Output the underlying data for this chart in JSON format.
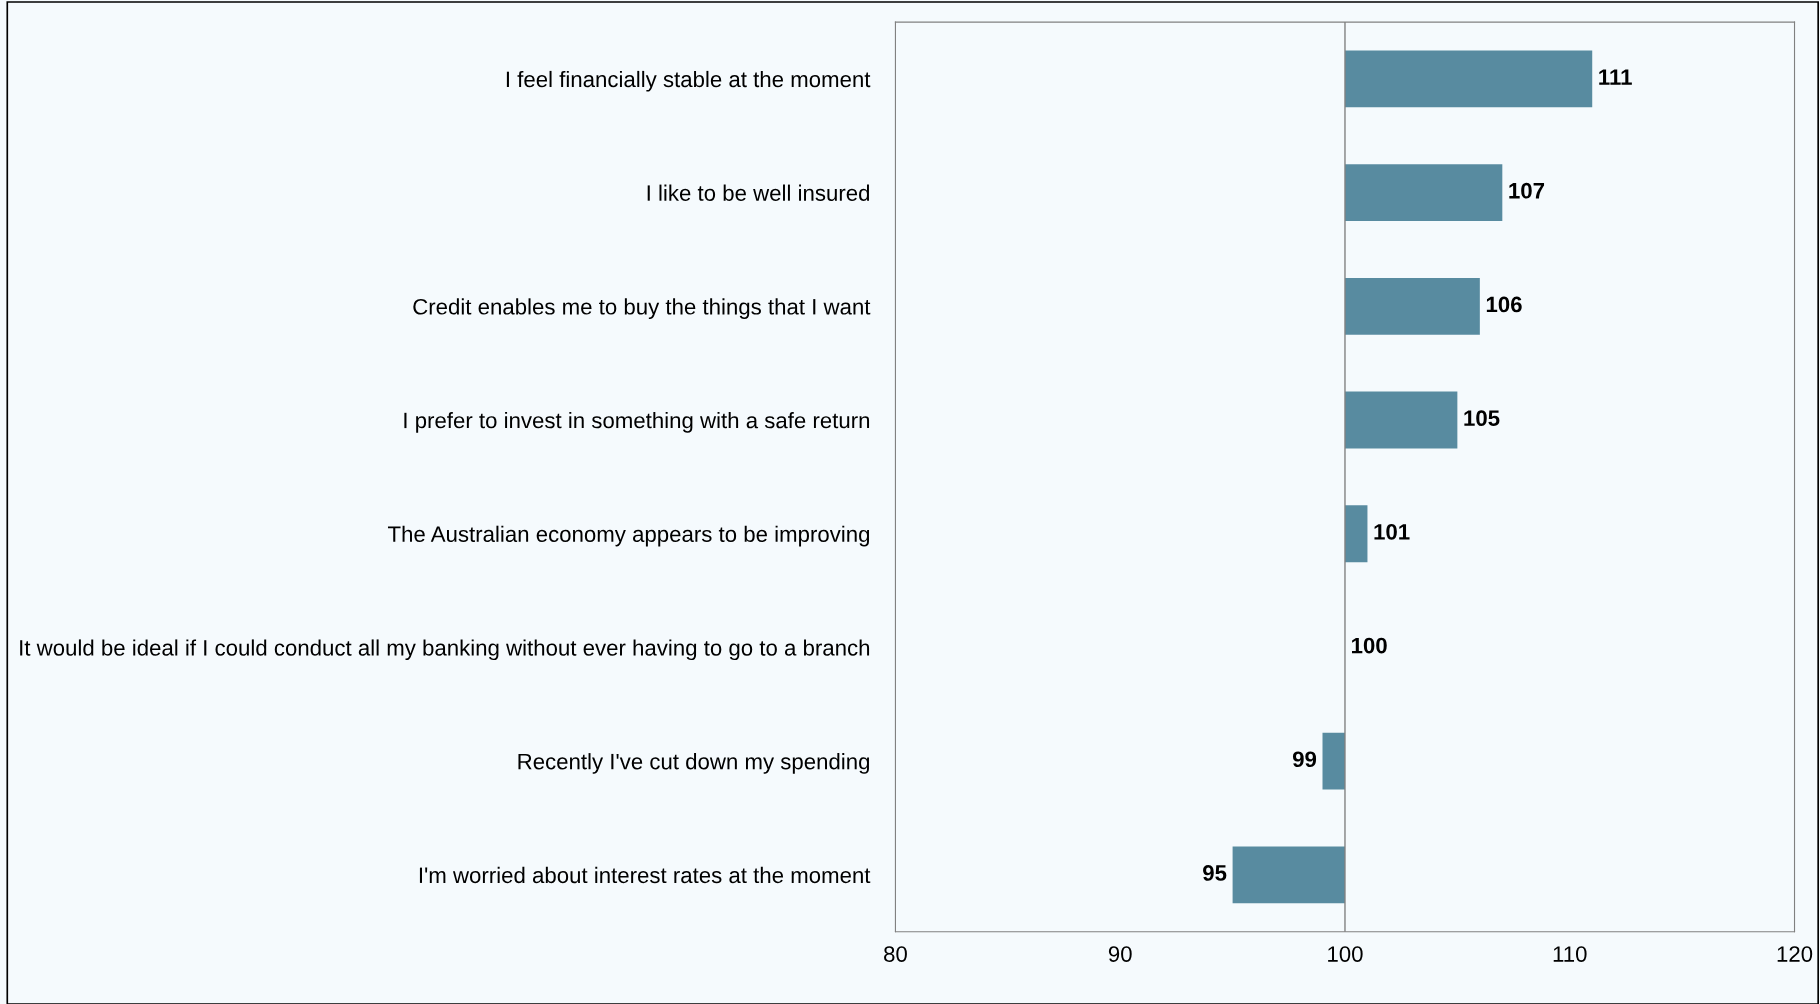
{
  "chart_data": {
    "type": "bar",
    "orientation": "horizontal",
    "categories": [
      "I feel financially stable at the moment",
      "I like to be well insured",
      "Credit enables me to buy the things that I want",
      "I prefer to invest in something with a safe return",
      "The Australian economy appears to be improving",
      "It would be ideal if I could conduct all my banking without ever having to go to a branch",
      "Recently I've cut down my spending",
      "I'm worried about interest rates at the moment"
    ],
    "base": [
      100,
      100,
      100,
      100,
      100,
      null,
      100,
      100
    ],
    "values": [
      11,
      7,
      6,
      5,
      1,
      null,
      -1,
      -5
    ],
    "value_labels": [
      "111",
      "107",
      "106",
      "105",
      "101",
      "100",
      "99",
      "95"
    ],
    "color": "#588ba0",
    "xlim": [
      80,
      120
    ],
    "xticks": [
      80,
      90,
      100,
      110,
      120
    ],
    "ref_lines": [
      {
        "axis": "x",
        "value": 100,
        "color": "#808080"
      }
    ],
    "grid": false
  }
}
